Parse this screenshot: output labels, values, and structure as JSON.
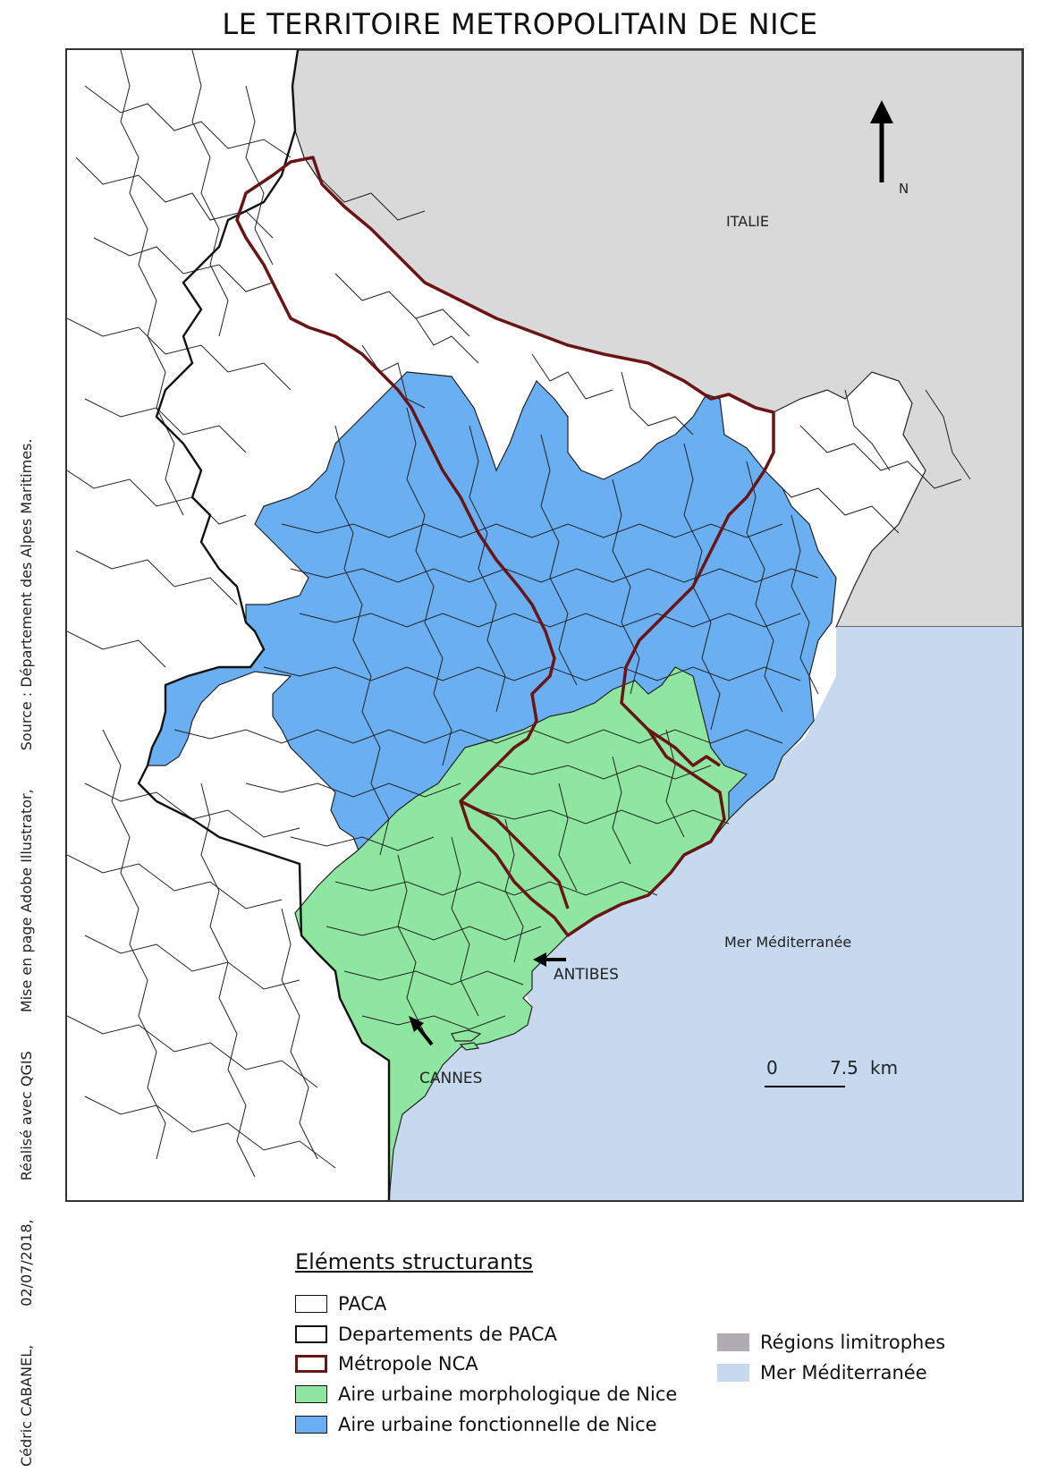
{
  "title": "LE TERRITOIRE METROPOLITAIN DE NICE",
  "map": {
    "labels": {
      "italie": "ITALIE",
      "north": "N",
      "sea": "Mer Méditerranée",
      "antibes": "ANTIBES",
      "cannes": "CANNES"
    },
    "scalebar": {
      "zero": "0",
      "value": "7.5",
      "unit": "km"
    },
    "colors": {
      "regions_limitrophes": "#d9d9d9",
      "mer": "#c6d9ee",
      "aire_fonctionnelle": "#6aaff2",
      "aire_morphologique": "#8fe6a0",
      "metropole_outline": "#6a1515"
    }
  },
  "credits": {
    "author": "Cédric CABANEL,",
    "date": "02/07/2018,",
    "software": "Réalisé avec QGIS",
    "layout": "Mise en page Adobe Illustrator,",
    "source": "Source : Département des Alpes Maritimes."
  },
  "legend": {
    "title": "Eléments structurants",
    "items": [
      {
        "label": "PACA",
        "swatch": "white-thin"
      },
      {
        "label": "Departements de PACA",
        "swatch": "white-thick"
      },
      {
        "label": "Métropole NCA",
        "swatch": "red-outline"
      },
      {
        "label": "Aire urbaine morphologique de Nice",
        "swatch": "green"
      },
      {
        "label": "Aire urbaine fonctionnelle de Nice",
        "swatch": "blue"
      },
      {
        "label": "Régions limitrophes",
        "swatch": "grey"
      },
      {
        "label": "Mer Méditerranée",
        "swatch": "lightblue"
      }
    ]
  }
}
